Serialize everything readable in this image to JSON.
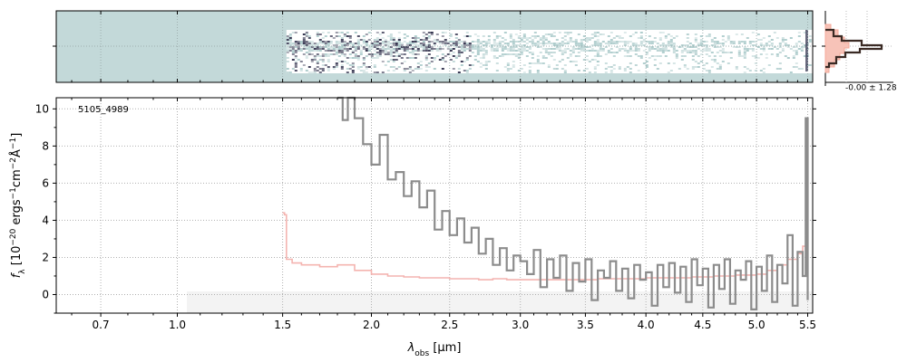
{
  "chart_data": [
    {
      "panel": "2d-spectrum",
      "type": "heatmap",
      "description_label": "",
      "xlim": [
        0.55,
        5.55
      ],
      "colormap": [
        "#ffffff",
        "#a9c9c9",
        "#2a2a46"
      ],
      "background_color": "#c3d9d9"
    },
    {
      "panel": "residual-histogram",
      "type": "line",
      "label": "-0.00 ± 1.28",
      "colors": {
        "hist": "#5a3a30",
        "gauss": "#f4b4a8"
      }
    },
    {
      "panel": "1d-spectrum",
      "type": "line",
      "object_label": "5105_4989",
      "xlabel_html": "λ<tspan baseline-shift='sub' font-size='9'>obs</tspan> [μm]",
      "ylabel": "f_λ [10^-20 ergs^-1 cm^-2 Å^-1]",
      "ylim": [
        -1.0,
        10.6
      ],
      "xlim": [
        0.55,
        5.55
      ],
      "xticks": [
        0.7,
        1.0,
        1.5,
        2.0,
        2.5,
        3.0,
        3.5,
        4.0,
        4.5,
        5.0,
        5.5
      ],
      "xtick_labels": [
        "0.7",
        "1.0",
        "1.5",
        "2.0",
        "2.5",
        "3.0",
        "3.5",
        "4.0",
        "4.5",
        "5.0",
        "5.5"
      ],
      "yticks": [
        0,
        2,
        4,
        6,
        8,
        10
      ],
      "ytick_labels": [
        "0",
        "2",
        "4",
        "6",
        "8",
        "10"
      ],
      "grid": true,
      "series": [
        {
          "role": "flux",
          "color": "#8c8c8c",
          "x": [
            1.8,
            1.83,
            1.86,
            1.9,
            1.95,
            2.0,
            2.05,
            2.1,
            2.15,
            2.2,
            2.25,
            2.3,
            2.35,
            2.4,
            2.45,
            2.5,
            2.55,
            2.6,
            2.65,
            2.7,
            2.75,
            2.8,
            2.85,
            2.9,
            2.95,
            3.0,
            3.05,
            3.1,
            3.15,
            3.2,
            3.25,
            3.3,
            3.35,
            3.4,
            3.45,
            3.5,
            3.55,
            3.6,
            3.65,
            3.7,
            3.75,
            3.8,
            3.85,
            3.9,
            3.95,
            4.0,
            4.05,
            4.1,
            4.15,
            4.2,
            4.25,
            4.3,
            4.35,
            4.4,
            4.45,
            4.5,
            4.55,
            4.6,
            4.65,
            4.7,
            4.75,
            4.8,
            4.85,
            4.9,
            4.95,
            5.0,
            5.05,
            5.1,
            5.15,
            5.2,
            5.25,
            5.3,
            5.35,
            5.4,
            5.45,
            5.48,
            5.5
          ],
          "y": [
            10.6,
            9.4,
            10.6,
            9.5,
            8.1,
            7.0,
            8.6,
            6.2,
            6.6,
            5.3,
            6.1,
            4.7,
            5.6,
            3.5,
            4.5,
            3.2,
            4.1,
            2.8,
            3.6,
            2.2,
            3.0,
            1.6,
            2.5,
            1.3,
            2.1,
            1.8,
            1.1,
            2.4,
            0.4,
            1.9,
            0.9,
            2.1,
            0.2,
            1.7,
            0.7,
            1.9,
            -0.3,
            1.3,
            0.9,
            1.8,
            0.2,
            1.4,
            -0.2,
            1.6,
            0.8,
            1.2,
            -0.6,
            1.6,
            0.4,
            1.7,
            0.1,
            1.5,
            -0.4,
            1.9,
            0.5,
            1.4,
            -0.7,
            1.6,
            0.3,
            1.9,
            -0.5,
            1.3,
            0.8,
            1.8,
            -0.8,
            1.5,
            0.2,
            2.1,
            -0.4,
            1.6,
            0.6,
            3.2,
            -0.6,
            2.3,
            1.0,
            9.5,
            -0.3
          ]
        },
        {
          "role": "error",
          "color": "#f4b4b0",
          "x": [
            1.5,
            1.51,
            1.52,
            1.55,
            1.6,
            1.7,
            1.8,
            1.9,
            2.0,
            2.1,
            2.2,
            2.3,
            2.4,
            2.5,
            2.6,
            2.7,
            2.8,
            2.9,
            3.0,
            3.2,
            3.4,
            3.6,
            3.8,
            4.0,
            4.2,
            4.4,
            4.6,
            4.8,
            5.0,
            5.1,
            5.2,
            5.3,
            5.4,
            5.45,
            5.48,
            5.5
          ],
          "y": [
            4.4,
            4.3,
            1.9,
            1.7,
            1.6,
            1.5,
            1.6,
            1.3,
            1.1,
            1.0,
            0.95,
            0.9,
            0.9,
            0.85,
            0.85,
            0.8,
            0.85,
            0.8,
            0.8,
            0.8,
            0.8,
            0.85,
            0.85,
            0.9,
            0.9,
            0.95,
            1.0,
            1.05,
            1.1,
            1.3,
            1.6,
            1.9,
            2.2,
            2.6,
            4.5,
            8.3
          ]
        }
      ]
    }
  ]
}
